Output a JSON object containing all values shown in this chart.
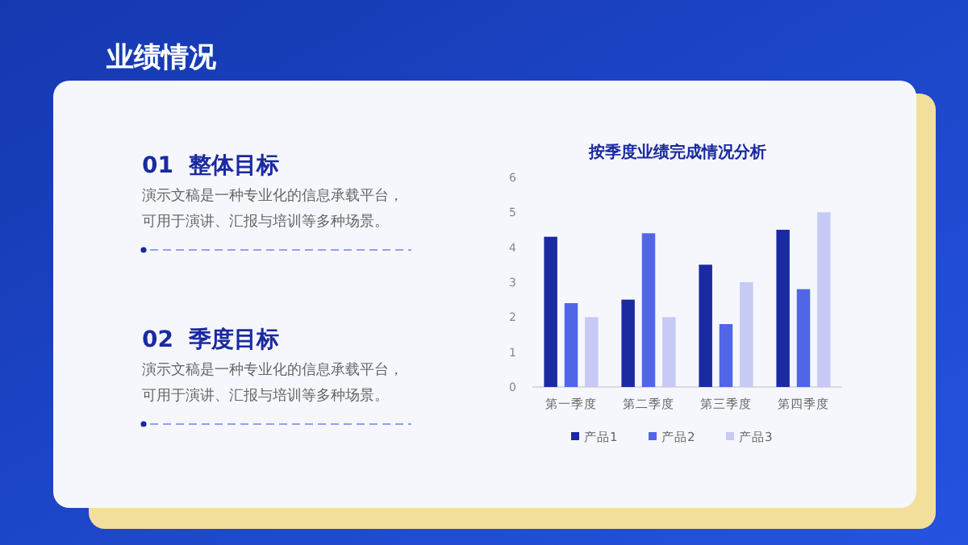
{
  "chart_data": {
    "type": "bar",
    "title": "按季度业绩完成情况分析",
    "categories": [
      "第一季度",
      "第二季度",
      "第三季度",
      "第四季度"
    ],
    "series": [
      {
        "name": "产品1",
        "color": "#1a2aa0",
        "values": [
          4.3,
          2.5,
          3.5,
          4.5
        ]
      },
      {
        "name": "产品2",
        "color": "#5066e6",
        "values": [
          2.4,
          4.4,
          1.8,
          2.8
        ]
      },
      {
        "name": "产品3",
        "color": "#c6caf5",
        "values": [
          2,
          2,
          3,
          5
        ]
      }
    ],
    "ylim": [
      0,
      6
    ],
    "yticks": [
      0,
      1,
      2,
      3,
      4,
      5,
      6
    ],
    "grid": false,
    "legend": "bottom",
    "annotations": [
      "业绩情况",
      "01  整体目标",
      "演示文稿是一种专业化的信息承载平台，",
      "可用于演讲、汇报与培训等多种场景。",
      "02  季度目标",
      "演示文稿是一种专业化的信息承载平台，",
      "可用于演讲、汇报与培训等多种场景。"
    ]
  }
}
